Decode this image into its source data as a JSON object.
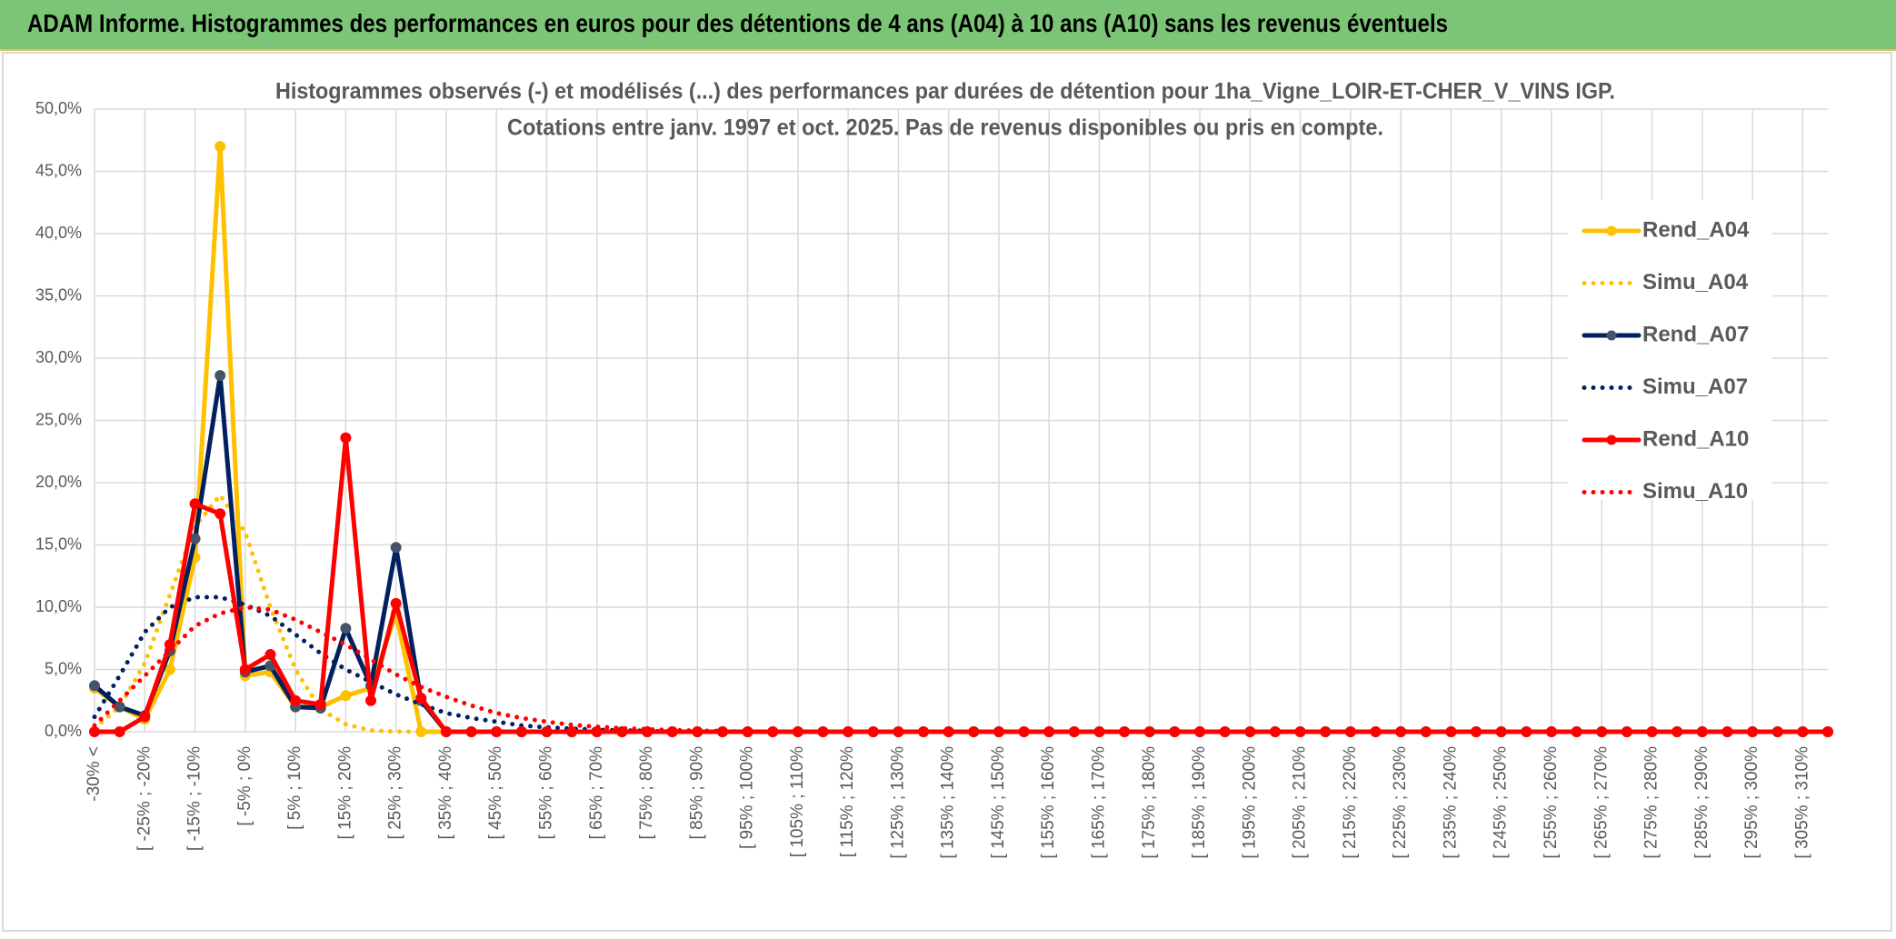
{
  "header": {
    "title": "ADAM Informe. Histogrammes des performances en euros pour des détentions de 4 ans (A04) à 10 ans (A10) sans les revenus éventuels"
  },
  "chart_data": {
    "type": "line",
    "title": "Histogrammes observés (-) et modélisés (...) des performances par durées de détention pour 1ha_Vigne_LOIR-ET-CHER_V_VINS IGP.",
    "subtitle": "Cotations entre janv. 1997 et oct. 2025. Pas de revenus disponibles ou pris en compte.",
    "categories": [
      "-30% <",
      null,
      "[ -25% ; -20%",
      null,
      "[ -15% ; -10%",
      null,
      "[ -5% ; 0%",
      null,
      "[ 5% ; 10%",
      null,
      "[ 15% ; 20%",
      null,
      "[ 25% ; 30%",
      null,
      "[ 35% ; 40%",
      null,
      "[ 45% ; 50%",
      null,
      "[ 55% ; 60%",
      null,
      "[ 65% ; 70%",
      null,
      "[ 75% ; 80%",
      null,
      "[ 85% ; 90%",
      null,
      "[ 95% ; 100%",
      null,
      "[ 105% ; 110%",
      null,
      "[ 115% ; 120%",
      null,
      "[ 125% ; 130%",
      null,
      "[ 135% ; 140%",
      null,
      "[ 145% ; 150%",
      null,
      "[ 155% ; 160%",
      null,
      "[ 165% ; 170%",
      null,
      "[ 175% ; 180%",
      null,
      "[ 185% ; 190%",
      null,
      "[ 195% ; 200%",
      null,
      "[ 205% ; 210%",
      null,
      "[ 215% ; 220%",
      null,
      "[ 225% ; 230%",
      null,
      "[ 235% ; 240%",
      null,
      "[ 245% ; 250%",
      null,
      "[ 255% ; 260%",
      null,
      "[ 265% ; 270%",
      null,
      "[ 275% ; 280%",
      null,
      "[ 285% ; 290%",
      null,
      "[ 295% ; 300%",
      null,
      "[ 305% ; 310%",
      null
    ],
    "series": [
      {
        "name": "Rend_A04",
        "color": "#ffc000",
        "style": "solid",
        "marker_color": "#ffc000",
        "values": [
          3.5,
          2,
          1,
          5,
          14,
          47,
          4.5,
          4.8,
          2,
          2,
          2.9,
          3.5,
          9.5,
          0,
          0,
          0,
          0,
          0,
          0,
          0,
          0,
          0,
          0,
          0,
          0,
          0,
          0,
          0,
          0,
          0,
          0,
          0,
          0,
          0,
          0,
          0,
          0,
          0,
          0,
          0,
          0,
          0,
          0,
          0,
          0,
          0,
          0,
          0,
          0,
          0,
          0,
          0,
          0,
          0,
          0,
          0,
          0,
          0,
          0,
          0,
          0,
          0,
          0,
          0,
          0,
          0,
          0,
          0,
          0,
          0
        ]
      },
      {
        "name": "Simu_A04",
        "color": "#ffc000",
        "style": "dotted",
        "values": [
          0.3,
          2,
          5.5,
          11,
          16.5,
          19,
          16,
          10,
          5,
          1.8,
          0.6,
          0.1,
          0.02,
          0,
          0,
          0,
          0,
          0,
          0,
          0,
          0,
          0,
          0,
          0,
          0,
          0,
          0,
          0,
          0,
          0,
          0,
          0,
          0,
          0,
          0,
          0,
          0,
          0,
          0,
          0,
          0,
          0,
          0,
          0,
          0,
          0,
          0,
          0,
          0,
          0,
          0,
          0,
          0,
          0,
          0,
          0,
          0,
          0,
          0,
          0,
          0,
          0,
          0,
          0,
          0,
          0,
          0,
          0,
          0,
          0
        ]
      },
      {
        "name": "Rend_A07",
        "color": "#002060",
        "style": "solid",
        "marker_color": "#44546a",
        "values": [
          3.7,
          2,
          1.3,
          6.5,
          15.5,
          28.6,
          4.8,
          5.3,
          2,
          1.9,
          8.3,
          3.7,
          14.8,
          2.5,
          0,
          0,
          0,
          0,
          0,
          0,
          0,
          0,
          0,
          0,
          0,
          0,
          0,
          0,
          0,
          0,
          0,
          0,
          0,
          0,
          0,
          0,
          0,
          0,
          0,
          0,
          0,
          0,
          0,
          0,
          0,
          0,
          0,
          0,
          0,
          0,
          0,
          0,
          0,
          0,
          0,
          0,
          0,
          0,
          0,
          0,
          0,
          0,
          0,
          0,
          0,
          0,
          0,
          0,
          0,
          0
        ]
      },
      {
        "name": "Simu_A07",
        "color": "#002060",
        "style": "dotted",
        "values": [
          1.2,
          4.5,
          8,
          10,
          10.8,
          10.8,
          10.2,
          9.3,
          7.8,
          6.3,
          5,
          4,
          3,
          2.2,
          1.5,
          1.1,
          0.8,
          0.5,
          0.35,
          0.25,
          0.15,
          0.1,
          0.07,
          0,
          0,
          0,
          0,
          0,
          0,
          0,
          0,
          0,
          0,
          0,
          0,
          0,
          0,
          0,
          0,
          0,
          0,
          0,
          0,
          0,
          0,
          0,
          0,
          0,
          0,
          0,
          0,
          0,
          0,
          0,
          0,
          0,
          0,
          0,
          0,
          0,
          0,
          0,
          0,
          0,
          0,
          0,
          0,
          0,
          0,
          0
        ]
      },
      {
        "name": "Rend_A10",
        "color": "#ff0000",
        "style": "solid",
        "marker_color": "#ff0000",
        "values": [
          0,
          0,
          1.2,
          7,
          18.3,
          17.5,
          5,
          6.2,
          2.5,
          2.2,
          23.6,
          2.5,
          10.3,
          2.7,
          0,
          0,
          0,
          0,
          0,
          0,
          0,
          0,
          0,
          0,
          0,
          0,
          0,
          0,
          0,
          0,
          0,
          0,
          0,
          0,
          0,
          0,
          0,
          0,
          0,
          0,
          0,
          0,
          0,
          0,
          0,
          0,
          0,
          0,
          0,
          0,
          0,
          0,
          0,
          0,
          0,
          0,
          0,
          0,
          0,
          0,
          0,
          0,
          0,
          0,
          0,
          0,
          0,
          0,
          0,
          0
        ]
      },
      {
        "name": "Simu_A10",
        "color": "#ff0000",
        "style": "dotted",
        "values": [
          0.5,
          2.5,
          4.5,
          6.5,
          8.5,
          9.5,
          10,
          9.8,
          9,
          8,
          7,
          5.8,
          4.6,
          3.6,
          2.8,
          2.1,
          1.5,
          1.1,
          0.8,
          0.55,
          0.4,
          0.28,
          0.2,
          0.13,
          0.09,
          0.06,
          0,
          0,
          0,
          0,
          0,
          0,
          0,
          0,
          0,
          0,
          0,
          0,
          0,
          0,
          0,
          0,
          0,
          0,
          0,
          0,
          0,
          0,
          0,
          0,
          0,
          0,
          0,
          0,
          0,
          0,
          0,
          0,
          0,
          0,
          0,
          0,
          0,
          0,
          0,
          0,
          0,
          0,
          0,
          0
        ]
      }
    ],
    "ylim": [
      0,
      50
    ],
    "yticks": [
      {
        "value": 0,
        "label": "0,0%"
      },
      {
        "value": 5,
        "label": "5,0%"
      },
      {
        "value": 10,
        "label": "10,0%"
      },
      {
        "value": 15,
        "label": "15,0%"
      },
      {
        "value": 20,
        "label": "20,0%"
      },
      {
        "value": 25,
        "label": "25,0%"
      },
      {
        "value": 30,
        "label": "30,0%"
      },
      {
        "value": 35,
        "label": "35,0%"
      },
      {
        "value": 40,
        "label": "40,0%"
      },
      {
        "value": 45,
        "label": "45,0%"
      },
      {
        "value": 50,
        "label": "50,0%"
      }
    ],
    "grid": true,
    "legend": "right"
  }
}
